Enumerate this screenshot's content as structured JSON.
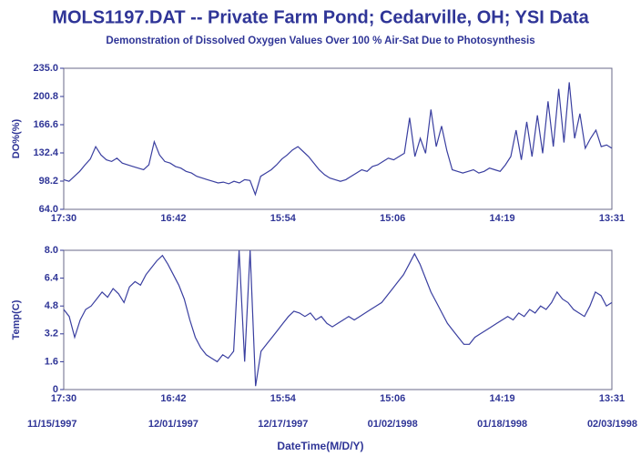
{
  "chart_data": [
    {
      "type": "line",
      "title": "MOLS1197.DAT -- Private Farm Pond; Cedarville, OH; YSI Data",
      "subtitle": "Demonstration of Dissolved Oxygen Values Over 100 % Air-Sat Due to Photosynthesis",
      "y_label": "DO%(%)",
      "ylim": [
        64,
        235
      ],
      "yticks": [
        {
          "value": 64,
          "label": "64.0"
        },
        98.2,
        132.4,
        166.6,
        200.8,
        {
          "value": 235,
          "label": "235.0"
        }
      ],
      "x_tick_labels": [
        "17:30",
        "16:42",
        "15:54",
        "15:06",
        "14:19",
        "13:31"
      ],
      "series": [
        {
          "color": "#3a3fa0",
          "values": [
            100,
            98,
            104,
            110,
            118,
            125,
            140,
            130,
            124,
            122,
            126,
            120,
            118,
            116,
            114,
            112,
            118,
            146,
            130,
            122,
            120,
            116,
            114,
            110,
            108,
            104,
            102,
            100,
            98,
            96,
            97,
            95,
            98,
            96,
            100,
            99,
            82,
            104,
            108,
            112,
            118,
            125,
            130,
            136,
            140,
            134,
            128,
            120,
            112,
            106,
            102,
            100,
            98,
            100,
            104,
            108,
            112,
            110,
            116,
            118,
            122,
            126,
            124,
            128,
            132,
            175,
            128,
            150,
            132,
            185,
            140,
            165,
            135,
            112,
            110,
            108,
            110,
            112,
            108,
            110,
            114,
            112,
            110,
            118,
            128,
            160,
            124,
            170,
            128,
            178,
            132,
            195,
            140,
            210,
            145,
            218,
            150,
            180,
            138,
            150,
            160,
            140,
            142,
            138
          ]
        }
      ]
    },
    {
      "type": "line",
      "y_label": "Temp(C)",
      "x_label": "DateTime(M/D/Y)",
      "ylim": [
        0,
        8
      ],
      "yticks": [
        0,
        1.6,
        3.2,
        4.8,
        6.4,
        {
          "value": 8,
          "label": "8.0"
        }
      ],
      "x_tick_labels": [
        "17:30",
        "16:42",
        "15:54",
        "15:06",
        "14:19",
        "13:31"
      ],
      "date_labels": [
        "11/15/1997",
        "12/01/1997",
        "12/17/1997",
        "01/02/1998",
        "01/18/1998",
        "02/03/1998"
      ],
      "series": [
        {
          "color": "#3a3fa0",
          "values": [
            4.6,
            4.2,
            3.0,
            4.0,
            4.6,
            4.8,
            5.2,
            5.6,
            5.3,
            5.8,
            5.5,
            5.0,
            5.9,
            6.2,
            6.0,
            6.6,
            7.0,
            7.4,
            7.7,
            7.2,
            6.6,
            6.0,
            5.2,
            4.0,
            3.0,
            2.4,
            2.0,
            1.8,
            1.6,
            2.0,
            1.8,
            2.2,
            8.0,
            1.6,
            8.0,
            0.2,
            2.2,
            2.6,
            3.0,
            3.4,
            3.8,
            4.2,
            4.5,
            4.4,
            4.2,
            4.4,
            4.0,
            4.2,
            3.8,
            3.6,
            3.8,
            4.0,
            4.2,
            4.0,
            4.2,
            4.4,
            4.6,
            4.8,
            5.0,
            5.4,
            5.8,
            6.2,
            6.6,
            7.2,
            7.8,
            7.2,
            6.4,
            5.6,
            5.0,
            4.4,
            3.8,
            3.4,
            3.0,
            2.6,
            2.6,
            3.0,
            3.2,
            3.4,
            3.6,
            3.8,
            4.0,
            4.2,
            4.0,
            4.4,
            4.2,
            4.6,
            4.4,
            4.8,
            4.6,
            5.0,
            5.6,
            5.2,
            5.0,
            4.6,
            4.4,
            4.2,
            4.8,
            5.6,
            5.4,
            4.8,
            5.0
          ]
        }
      ]
    }
  ]
}
